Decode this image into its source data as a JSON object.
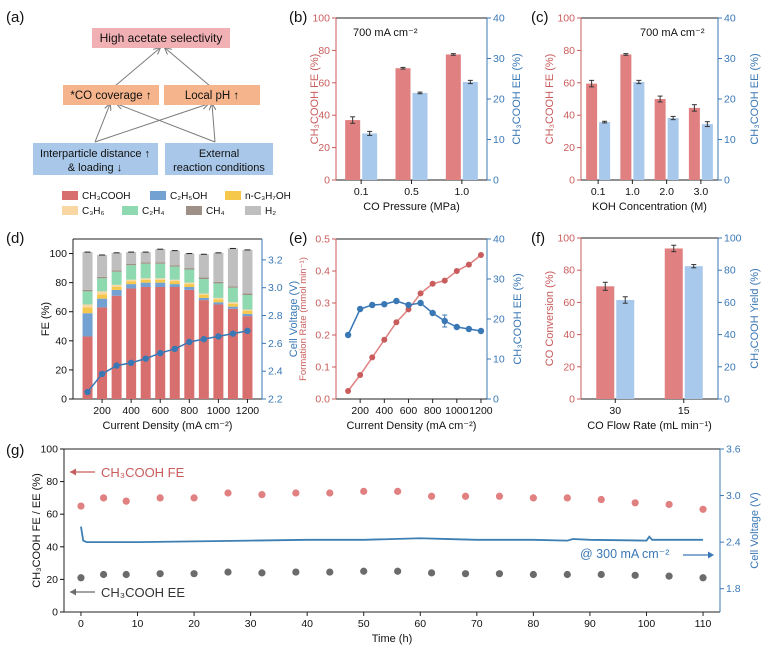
{
  "colors": {
    "red": "#e08080",
    "red_dark": "#c95c5c",
    "blue": "#a8c8ec",
    "blue_dark": "#3a78b5",
    "gray": "#6b6b6b",
    "box_pink": "#f1b1b4",
    "box_orange": "#f5b48c",
    "box_blue": "#a9c8e9",
    "c_ch3cooh": "#d66f6d",
    "c_c2h5oh": "#72a1d2",
    "c_nc3h7oh": "#f5c74b",
    "c_c3h6": "#f8d7a3",
    "c_c2h4": "#8fd9b0",
    "c_ch4": "#9e9086",
    "c_h2": "#bfbfbf"
  },
  "panel_a": {
    "label": "(a)",
    "top_box": "High acetate selectivity",
    "mid_left": "*CO coverage ↑",
    "mid_right": "Local pH ↑",
    "bot_left_line1": "Interparticle distance ↑",
    "bot_left_line2": "& loading ↓",
    "bot_right_line1": "External",
    "bot_right_line2": "reaction conditions"
  },
  "chart_data": [
    {
      "id": "b",
      "type": "bar",
      "panel_label": "(b)",
      "annotation": "700 mA cm⁻²",
      "xlabel": "CO Pressure (MPa)",
      "ylabel_left": "CH₃COOH FE (%)",
      "ylabel_right": "CH₃COOH EE (%)",
      "categories": [
        "0.1",
        "0.5",
        "1.0"
      ],
      "series": [
        {
          "name": "CH3COOH FE",
          "axis": "left",
          "values": [
            37,
            69,
            77.5
          ],
          "errors": [
            2,
            0.5,
            0.5
          ]
        },
        {
          "name": "CH3COOH EE",
          "axis": "right",
          "values": [
            11.5,
            21.5,
            24.2
          ],
          "errors": [
            0.5,
            0.2,
            0.4
          ]
        }
      ],
      "ylim_left": [
        0,
        100
      ],
      "ylim_right": [
        0,
        40
      ],
      "yticks_left": [
        "0",
        "20",
        "40",
        "60",
        "80",
        "100"
      ],
      "yticks_right": [
        "0",
        "10",
        "20",
        "30",
        "40"
      ]
    },
    {
      "id": "c",
      "type": "bar",
      "panel_label": "(c)",
      "annotation": "700 mA cm⁻²",
      "xlabel": "KOH Concentration (M)",
      "ylabel_left": "CH₃COOH FE (%)",
      "ylabel_right": "CH₃COOH EE (%)",
      "categories": [
        "0.1",
        "1.0",
        "2.0",
        "3.0"
      ],
      "series": [
        {
          "name": "CH3COOH FE",
          "axis": "left",
          "values": [
            59.5,
            77.5,
            50,
            44.5
          ],
          "errors": [
            2,
            0.5,
            1.8,
            2
          ]
        },
        {
          "name": "CH3COOH EE",
          "axis": "right",
          "values": [
            14.3,
            24.2,
            15.3,
            13.8
          ],
          "errors": [
            0.2,
            0.4,
            0.4,
            0.6
          ]
        }
      ],
      "ylim_left": [
        0,
        100
      ],
      "ylim_right": [
        0,
        40
      ],
      "yticks_left": [
        "0",
        "20",
        "40",
        "60",
        "80",
        "100"
      ],
      "yticks_right": [
        "0",
        "10",
        "20",
        "30",
        "40"
      ]
    },
    {
      "id": "d",
      "type": "bar",
      "panel_label": "(d)",
      "xlabel": "Current Density (mA cm⁻²)",
      "ylabel_left": "FE (%)",
      "ylabel_right": "Cell Voltage (V)",
      "x": [
        100,
        200,
        300,
        400,
        500,
        600,
        700,
        800,
        900,
        1000,
        1100,
        1200
      ],
      "xticks": [
        "200",
        "400",
        "600",
        "800",
        "1000",
        "1200"
      ],
      "legend": [
        "CH₃COOH",
        "C₂H₅OH",
        "n-C₃H₇OH",
        "C₃H₆",
        "C₂H₄",
        "CH₄",
        "H₂"
      ],
      "stacked": {
        "CH3COOH": [
          43,
          63,
          71,
          76,
          77,
          77,
          77,
          75,
          68,
          65,
          62,
          57
        ],
        "C2H5OH": [
          16,
          6,
          4,
          3,
          3,
          3,
          2,
          2,
          1.5,
          1.5,
          1.5,
          1.5
        ],
        "n-C3H7OH": [
          4,
          3,
          2,
          2,
          2,
          2,
          2,
          2,
          2,
          2,
          2,
          2
        ],
        "C3H6": [
          2,
          2,
          1.5,
          1,
          1,
          1,
          1,
          1,
          1,
          1,
          1,
          1
        ],
        "C2H4": [
          9,
          9,
          9,
          10,
          10,
          10,
          9,
          9,
          10,
          10,
          10,
          10
        ],
        "CH4": [
          1,
          1,
          1,
          1,
          1,
          1,
          1,
          1,
          1,
          1,
          1,
          1
        ],
        "H2": [
          26,
          15,
          12,
          8,
          7,
          9,
          10,
          10,
          16,
          20,
          26,
          30
        ]
      },
      "voltage": [
        2.25,
        2.38,
        2.44,
        2.46,
        2.49,
        2.53,
        2.56,
        2.61,
        2.63,
        2.65,
        2.67,
        2.69
      ],
      "ylim_left": [
        0,
        110
      ],
      "ylim_right": [
        2.2,
        3.35
      ],
      "yticks_left": [
        "0",
        "20",
        "40",
        "60",
        "80",
        "100"
      ],
      "yticks_right": [
        "2.2",
        "2.4",
        "2.6",
        "2.8",
        "3.0",
        "3.2"
      ]
    },
    {
      "id": "e",
      "type": "line",
      "panel_label": "(e)",
      "xlabel": "Current Density (mA cm⁻²)",
      "ylabel_left": "Formation Rate (mmol min⁻¹)",
      "ylabel_right": "CH₃COOH EE (%)",
      "x": [
        100,
        200,
        300,
        400,
        500,
        600,
        700,
        800,
        900,
        1000,
        1100,
        1200
      ],
      "xticks": [
        "200",
        "400",
        "600",
        "800",
        "1000",
        "1200"
      ],
      "series": [
        {
          "name": "Formation Rate",
          "axis": "left",
          "values": [
            0.025,
            0.075,
            0.13,
            0.185,
            0.24,
            0.28,
            0.33,
            0.36,
            0.37,
            0.4,
            0.42,
            0.45
          ]
        },
        {
          "name": "CH3COOH EE",
          "axis": "right",
          "values": [
            16,
            22.5,
            23.5,
            23.7,
            24.5,
            23.5,
            24,
            21.5,
            19.5,
            18,
            17.5,
            17
          ],
          "errors": [
            0,
            0,
            0,
            0,
            0,
            0,
            0,
            0,
            1.5,
            0,
            0,
            0
          ]
        }
      ],
      "ylim_left": [
        0,
        0.5
      ],
      "ylim_right": [
        0,
        40
      ],
      "yticks_left": [
        "0.0",
        "0.1",
        "0.2",
        "0.3",
        "0.4",
        "0.5"
      ],
      "yticks_right": [
        "0",
        "10",
        "20",
        "30",
        "40"
      ]
    },
    {
      "id": "f",
      "type": "bar",
      "panel_label": "(f)",
      "xlabel": "CO Flow Rate (mL min⁻¹)",
      "ylabel_left": "CO Conversion (%)",
      "ylabel_right": "CH₃COOH Yield (%)",
      "categories": [
        "30",
        "15"
      ],
      "series": [
        {
          "name": "CO Conversion",
          "axis": "left",
          "values": [
            70,
            93.5
          ],
          "errors": [
            2.5,
            2
          ]
        },
        {
          "name": "CH3COOH Yield",
          "axis": "right",
          "values": [
            61.5,
            82.5
          ],
          "errors": [
            2,
            1
          ]
        }
      ],
      "ylim_left": [
        0,
        100
      ],
      "ylim_right": [
        0,
        100
      ],
      "yticks_left": [
        "0",
        "20",
        "40",
        "60",
        "80",
        "100"
      ],
      "yticks_right": [
        "0",
        "20",
        "40",
        "60",
        "80",
        "100"
      ]
    },
    {
      "id": "g",
      "type": "scatter",
      "panel_label": "(g)",
      "xlabel": "Time (h)",
      "ylabel_left": "CH₃COOH FE / EE (%)",
      "ylabel_right": "Cell Voltage (V)",
      "annotation_fe": "CH₃COOH FE",
      "annotation_ee": "CH₃COOH EE",
      "annotation_current": "@ 300 mA cm⁻²",
      "x": [
        0,
        4,
        8,
        14,
        20,
        26,
        32,
        38,
        44,
        50,
        56,
        62,
        68,
        74,
        80,
        86,
        92,
        98,
        104,
        110
      ],
      "fe": [
        65,
        70,
        68,
        70,
        70,
        73,
        72,
        73,
        73,
        74,
        74,
        71,
        71,
        71,
        70,
        70,
        69,
        67,
        66,
        63
      ],
      "ee": [
        21,
        23,
        23,
        23.5,
        23.5,
        24.5,
        24,
        24.5,
        24.5,
        25,
        25,
        24,
        23.5,
        23.5,
        23,
        23,
        23,
        22.5,
        22,
        21
      ],
      "voltage_t": [
        0,
        0.4,
        1,
        5,
        10,
        20,
        30,
        40,
        50,
        60,
        65,
        70,
        80,
        86,
        87,
        90,
        100,
        100.5,
        101,
        110
      ],
      "voltage": [
        2.6,
        2.42,
        2.4,
        2.4,
        2.4,
        2.41,
        2.42,
        2.43,
        2.43,
        2.45,
        2.44,
        2.43,
        2.43,
        2.42,
        2.44,
        2.43,
        2.42,
        2.47,
        2.43,
        2.43
      ],
      "xticks": [
        "0",
        "10",
        "20",
        "30",
        "40",
        "50",
        "60",
        "70",
        "80",
        "90",
        "100",
        "110"
      ],
      "ylim_left": [
        0,
        100
      ],
      "ylim_right": [
        1.5,
        3.6
      ],
      "yticks_left": [
        "0",
        "20",
        "40",
        "60",
        "80",
        "100"
      ],
      "yticks_right": [
        "1.8",
        "2.4",
        "3.0",
        "3.6"
      ]
    }
  ]
}
